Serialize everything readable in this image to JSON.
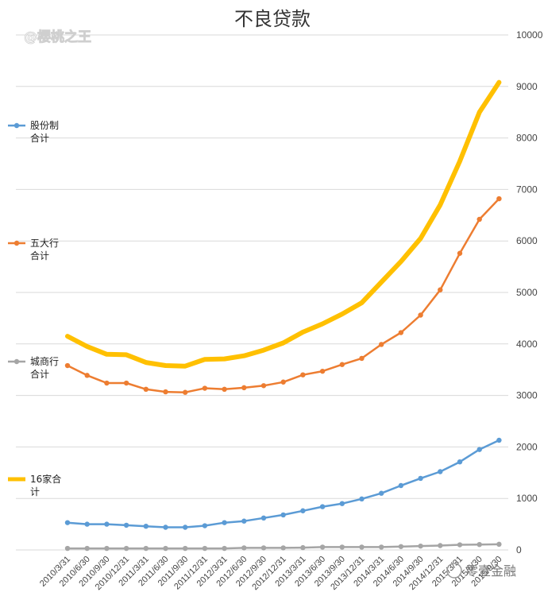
{
  "chart_data": {
    "type": "line",
    "title": "不良贷款",
    "watermark": "@樱桃之王",
    "brand_watermark": "零壹金融",
    "xlabel": "",
    "ylabel": "",
    "ylim": [
      0,
      10000
    ],
    "yticks": [
      0,
      1000,
      2000,
      3000,
      4000,
      5000,
      6000,
      7000,
      8000,
      9000,
      10000
    ],
    "grid": true,
    "legend_position": "left",
    "categories": [
      "2010/3/31",
      "2010/6/30",
      "2010/9/30",
      "2010/12/31",
      "2011/3/31",
      "2011/6/30",
      "2011/9/30",
      "2011/12/31",
      "2012/3/31",
      "2012/6/30",
      "2012/9/30",
      "2012/12/31",
      "2013/3/31",
      "2013/6/30",
      "2013/9/30",
      "2013/12/31",
      "2014/3/31",
      "2014/6/30",
      "2014/9/30",
      "2014/12/31",
      "2015/3/31",
      "2015/6/30",
      "2015/9/30"
    ],
    "series": [
      {
        "name": "股份制合计",
        "legend_lines": [
          "股份制",
          "合计"
        ],
        "color": "#5b9bd5",
        "width": 2.5,
        "markers": true,
        "values": [
          530,
          500,
          500,
          480,
          460,
          440,
          440,
          470,
          530,
          560,
          620,
          680,
          760,
          840,
          900,
          990,
          1100,
          1250,
          1390,
          1520,
          1710,
          1950,
          2130
        ]
      },
      {
        "name": "五大行合计",
        "legend_lines": [
          "五大行",
          "合计"
        ],
        "color": "#ed7d31",
        "width": 2.5,
        "markers": true,
        "values": [
          3580,
          3390,
          3240,
          3240,
          3120,
          3070,
          3060,
          3140,
          3120,
          3150,
          3190,
          3260,
          3400,
          3470,
          3600,
          3720,
          3990,
          4220,
          4560,
          5050,
          5760,
          6420,
          6820
        ]
      },
      {
        "name": "城商行合计",
        "legend_lines": [
          "城商行",
          "合计"
        ],
        "color": "#a5a5a5",
        "width": 2.5,
        "markers": true,
        "values": [
          30,
          30,
          30,
          30,
          30,
          30,
          30,
          30,
          30,
          40,
          40,
          40,
          45,
          55,
          55,
          55,
          55,
          65,
          75,
          85,
          100,
          105,
          110
        ]
      },
      {
        "name": "16家合计",
        "legend_lines": [
          "16家合",
          "计"
        ],
        "color": "#ffc000",
        "width": 6,
        "markers": false,
        "values": [
          4150,
          3950,
          3800,
          3790,
          3640,
          3580,
          3570,
          3700,
          3710,
          3770,
          3880,
          4020,
          4230,
          4390,
          4580,
          4800,
          5200,
          5600,
          6050,
          6700,
          7550,
          8500,
          9080
        ]
      }
    ]
  }
}
